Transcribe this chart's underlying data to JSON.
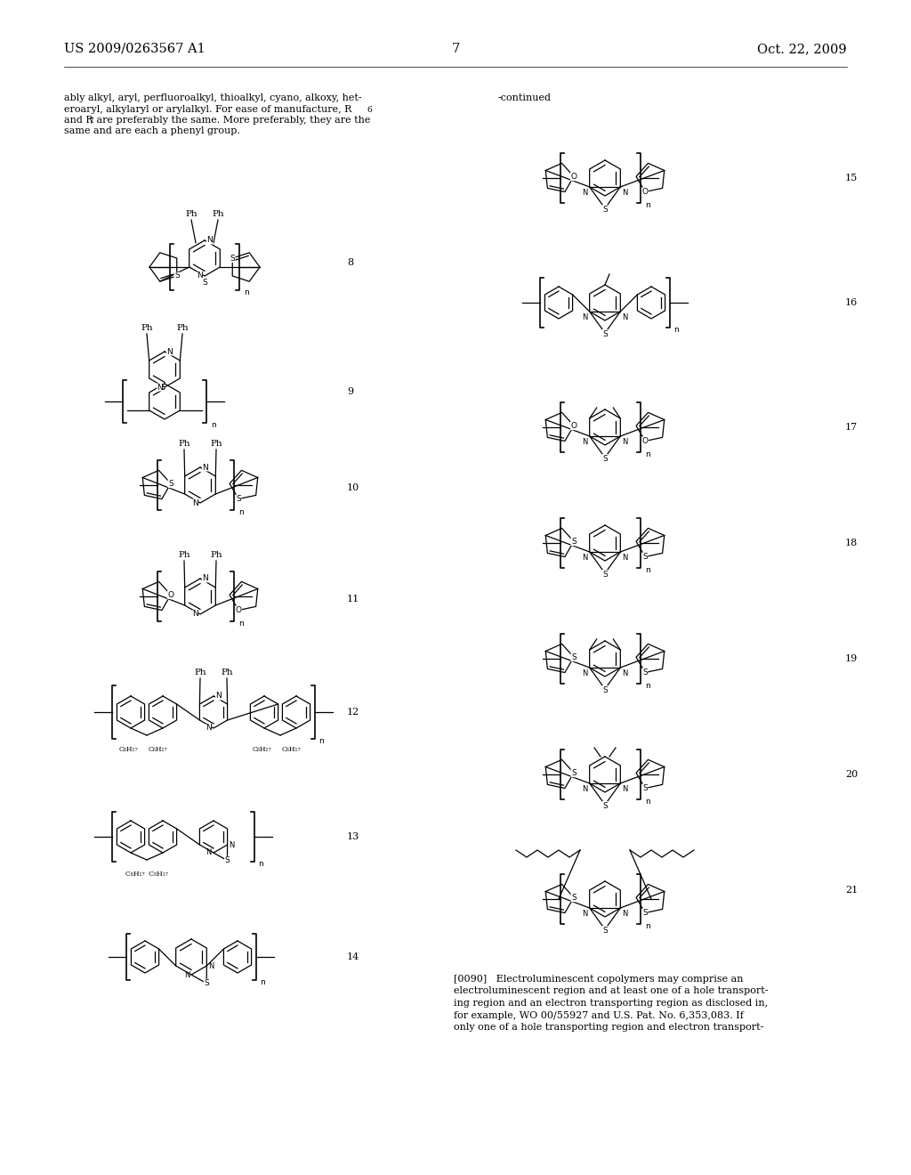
{
  "patent_number": "US 2009/0263567 A1",
  "date": "Oct. 22, 2009",
  "page_number": "7",
  "background_color": "#ffffff",
  "text_color": "#000000",
  "header_fontsize": 10.5,
  "body_fontsize": 8.0,
  "left_text_line1": "ably alkyl, aryl, perfluoroalkyl, thioalkyl, cyano, alkoxy, het-",
  "left_text_line2": "eroaryl, alkylaryl or arylalkyl. For ease of manufacture, R",
  "left_text_line2b": "6",
  "left_text_line3": "and R",
  "left_text_line3b": "7",
  "left_text_line3c": " are preferably the same. More preferably, they are the",
  "left_text_line4": "same and are each a phenyl group.",
  "continued_text": "-continued",
  "para0090_line1": "[0090]   Electroluminescent copolymers may comprise an",
  "para0090_line2": "electroluminescent region and at least one of a hole transport-",
  "para0090_line3": "ing region and an electron transporting region as disclosed in,",
  "para0090_line4": "for example, WO 00/55927 and U.S. Pat. No. 6,353,083. If",
  "para0090_line5": "only one of a hole transporting region and electron transport-"
}
